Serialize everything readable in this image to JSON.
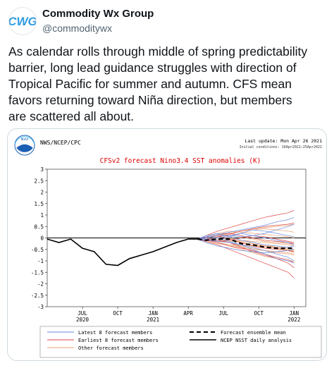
{
  "account": {
    "display_name": "Commodity Wx Group",
    "handle": "@commoditywx",
    "avatar_text": "CWG",
    "avatar_color": "#2f9be0"
  },
  "tweet": {
    "text": "As calendar rolls through middle of spring predictability\nbarrier, long lead guidance struggles with direction of\nTropical Pacific for summer and autumn. CFS mean\nfavors returning toward Niña direction, but members\nare scattered all about."
  },
  "chart_data": {
    "type": "line",
    "source": "NWS/NCEP/CPC",
    "logo_text": "NOAA",
    "last_update": "Last update: Mon Apr 26 2021",
    "initial_conditions": "Initial conditions: 16Apr2021—25Apr2021",
    "title": "CFSv2 forecast Nino3.4 SST anomalies (K)",
    "xlabel": "",
    "ylabel": "",
    "ylim": [
      -3,
      3
    ],
    "yticks": [
      "3",
      "2.5",
      "2",
      "1.5",
      "1",
      "0.5",
      "0",
      "-0.5",
      "-1",
      "-1.5",
      "-2",
      "-2.5",
      "-3"
    ],
    "xlim": [
      0,
      22
    ],
    "xticks": [
      {
        "x": 3,
        "line1": "JUL",
        "line2": "2020"
      },
      {
        "x": 6,
        "line1": "OCT",
        "line2": ""
      },
      {
        "x": 9,
        "line1": "JAN",
        "line2": "2021"
      },
      {
        "x": 12,
        "line1": "APR",
        "line2": ""
      },
      {
        "x": 15,
        "line1": "JUL",
        "line2": ""
      },
      {
        "x": 18,
        "line1": "OCT",
        "line2": ""
      },
      {
        "x": 21,
        "line1": "JAN",
        "line2": "2022"
      }
    ],
    "colors": {
      "latest": "#6688dd",
      "earliest": "#dd4444",
      "other": "#e8a070",
      "mean": "#000000",
      "analysis": "#000000",
      "title": "#dd0000"
    },
    "analysis": {
      "name": "NCEP NSST daily analysis",
      "x": [
        0,
        1,
        2,
        3,
        4,
        5,
        6,
        7,
        8,
        9,
        10,
        11,
        12,
        12.8
      ],
      "y": [
        -0.05,
        -0.2,
        -0.05,
        -0.45,
        -0.6,
        -1.15,
        -1.2,
        -0.9,
        -0.75,
        -0.6,
        -0.4,
        -0.2,
        -0.05,
        -0.05
      ]
    },
    "ensemble_mean": {
      "name": "Forecast ensemble mean",
      "x": [
        12.8,
        13.5,
        14.5,
        15.5,
        16.5,
        17.5,
        18.5,
        19.5,
        20.5,
        21
      ],
      "y": [
        -0.05,
        -0.1,
        -0.05,
        -0.05,
        -0.25,
        -0.3,
        -0.4,
        -0.45,
        -0.45,
        -0.45
      ]
    },
    "members": {
      "x": [
        12.8,
        13.5,
        14.5,
        15.5,
        16.5,
        17.5,
        18.5,
        19.5,
        20.5,
        21
      ],
      "latest": [
        [
          -0.05,
          0.05,
          0.15,
          0.25,
          0.35,
          0.45,
          0.55,
          0.7,
          0.8,
          0.9
        ],
        [
          -0.05,
          0.0,
          0.1,
          0.1,
          0.05,
          0.1,
          0.2,
          0.35,
          0.5,
          0.6
        ],
        [
          -0.05,
          -0.1,
          -0.15,
          -0.2,
          -0.3,
          -0.4,
          -0.55,
          -0.7,
          -0.85,
          -1.0
        ],
        [
          -0.05,
          -0.05,
          0.0,
          -0.15,
          -0.3,
          -0.5,
          -0.7,
          -0.9,
          -1.0,
          -1.1
        ],
        [
          -0.05,
          0.05,
          0.0,
          0.1,
          0.2,
          0.1,
          0.0,
          -0.1,
          -0.2,
          -0.3
        ],
        [
          -0.05,
          -0.1,
          -0.1,
          0.05,
          0.2,
          0.35,
          0.3,
          0.2,
          0.1,
          0.05
        ],
        [
          -0.05,
          -0.2,
          -0.35,
          -0.45,
          -0.55,
          -0.6,
          -0.65,
          -0.6,
          -0.55,
          -0.5
        ],
        [
          -0.05,
          0.1,
          0.2,
          0.05,
          -0.1,
          -0.2,
          -0.3,
          -0.35,
          -0.4,
          -0.35
        ]
      ],
      "earliest": [
        [
          -0.05,
          0.1,
          0.3,
          0.45,
          0.6,
          0.75,
          0.9,
          1.0,
          1.1,
          1.2
        ],
        [
          -0.05,
          -0.15,
          -0.3,
          -0.5,
          -0.7,
          -0.9,
          -1.1,
          -1.3,
          -1.5,
          -1.75
        ],
        [
          -0.05,
          0.0,
          -0.1,
          -0.2,
          -0.4,
          -0.6,
          -0.75,
          -0.9,
          -1.1,
          -1.3
        ],
        [
          -0.05,
          0.05,
          0.15,
          0.2,
          0.1,
          0.0,
          -0.1,
          -0.15,
          -0.2,
          -0.25
        ],
        [
          -0.05,
          -0.1,
          0.05,
          0.15,
          0.3,
          0.4,
          0.5,
          0.55,
          0.6,
          0.65
        ],
        [
          -0.05,
          -0.1,
          -0.2,
          -0.35,
          -0.45,
          -0.55,
          -0.7,
          -0.85,
          -0.95,
          -1.05
        ],
        [
          -0.05,
          0.0,
          0.1,
          -0.05,
          -0.2,
          -0.35,
          -0.45,
          -0.5,
          -0.55,
          -0.6
        ],
        [
          -0.05,
          -0.05,
          -0.15,
          -0.1,
          0.0,
          0.1,
          0.05,
          -0.05,
          -0.15,
          -0.2
        ]
      ],
      "other": [
        [
          -0.05,
          0.05,
          0.1,
          0.2,
          0.3,
          0.4,
          0.45,
          0.5,
          0.55,
          0.6
        ],
        [
          -0.05,
          -0.1,
          -0.2,
          -0.3,
          -0.4,
          -0.5,
          -0.55,
          -0.65,
          -0.7,
          -0.75
        ],
        [
          -0.05,
          0.0,
          0.05,
          0.0,
          -0.1,
          -0.15,
          -0.2,
          -0.25,
          -0.3,
          -0.35
        ],
        [
          -0.05,
          -0.05,
          -0.1,
          -0.2,
          -0.35,
          -0.45,
          -0.55,
          -0.6,
          -0.65,
          -0.7
        ],
        [
          -0.05,
          0.1,
          0.2,
          0.3,
          0.25,
          0.2,
          0.15,
          0.1,
          0.05,
          0.0
        ],
        [
          -0.05,
          -0.15,
          -0.25,
          -0.3,
          -0.3,
          -0.35,
          -0.4,
          -0.45,
          -0.5,
          -0.55
        ],
        [
          -0.05,
          0.0,
          -0.05,
          -0.1,
          -0.2,
          -0.3,
          -0.35,
          -0.4,
          -0.45,
          -0.5
        ],
        [
          -0.05,
          0.05,
          0.15,
          0.1,
          0.05,
          -0.05,
          -0.15,
          -0.2,
          -0.25,
          -0.3
        ],
        [
          -0.05,
          -0.1,
          -0.1,
          -0.15,
          -0.1,
          -0.2,
          -0.3,
          -0.4,
          -0.5,
          -0.6
        ],
        [
          -0.05,
          0.0,
          0.1,
          0.2,
          0.3,
          0.35,
          0.4,
          0.35,
          0.3,
          0.25
        ],
        [
          -0.05,
          -0.05,
          -0.2,
          -0.35,
          -0.5,
          -0.65,
          -0.8,
          -0.9,
          -1.0,
          -1.05
        ],
        [
          -0.05,
          0.05,
          0.0,
          -0.05,
          -0.15,
          -0.25,
          -0.35,
          -0.45,
          -0.55,
          -0.65
        ]
      ]
    },
    "legend": {
      "latest": "Latest 8 forecast members",
      "earliest": "Earliest 8 forecast members",
      "other": "Other forecast members",
      "mean": "Forecast ensemble mean",
      "analysis": "NCEP NSST daily analysis"
    }
  }
}
